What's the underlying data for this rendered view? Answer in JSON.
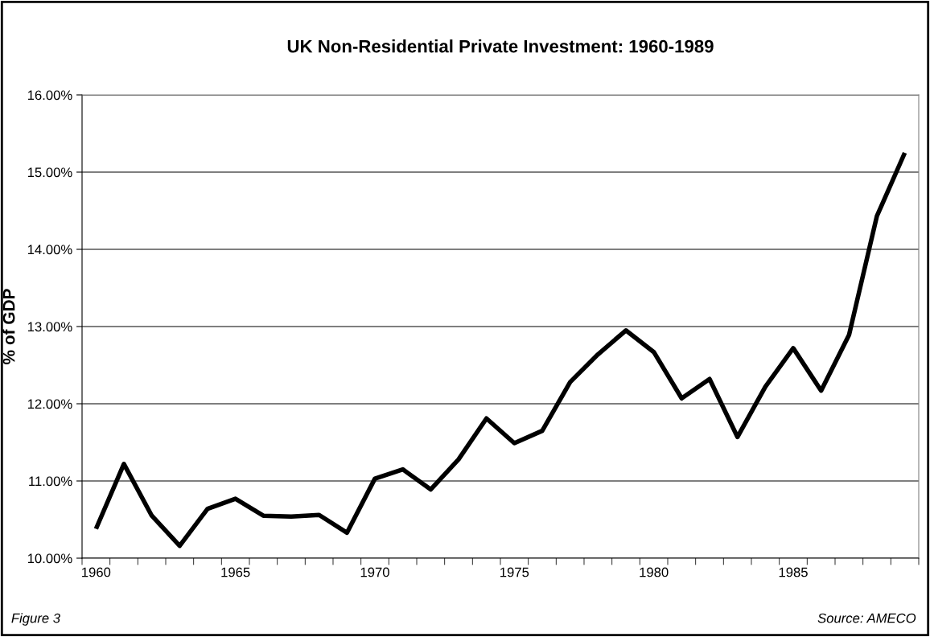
{
  "chart_data": {
    "type": "line",
    "title": "UK Non-Residential Private Investment: 1960-1989",
    "ylabel": "% of GDP",
    "categories": [
      "1960",
      null,
      null,
      null,
      null,
      "1965",
      null,
      null,
      null,
      null,
      "1970",
      null,
      null,
      null,
      null,
      "1975",
      null,
      null,
      null,
      null,
      "1980",
      null,
      null,
      null,
      null,
      "1985",
      null,
      null,
      null,
      null
    ],
    "series": [
      {
        "color": "#000000",
        "values": [
          10.38,
          11.22,
          10.55,
          10.16,
          10.64,
          10.77,
          10.55,
          10.54,
          10.56,
          10.33,
          11.03,
          11.15,
          10.89,
          11.28,
          11.81,
          11.49,
          11.65,
          12.28,
          12.64,
          12.95,
          12.67,
          12.07,
          12.32,
          11.57,
          12.22,
          12.72,
          12.17,
          12.89,
          14.43,
          15.25
        ]
      }
    ],
    "ylim": [
      10,
      16
    ],
    "yticks": [
      {
        "value": 10,
        "label": "10.00%"
      },
      {
        "value": 11,
        "label": "11.00%"
      },
      {
        "value": 12,
        "label": "12.00%"
      },
      {
        "value": 13,
        "label": "13.00%"
      },
      {
        "value": 14,
        "label": "14.00%"
      },
      {
        "value": 15,
        "label": "15.00%"
      },
      {
        "value": 16,
        "label": "16.00%"
      }
    ],
    "grid": "y",
    "marker": "none",
    "line_style": "solid",
    "annotations": [
      "Figure 3",
      "Source: AMECO"
    ]
  }
}
